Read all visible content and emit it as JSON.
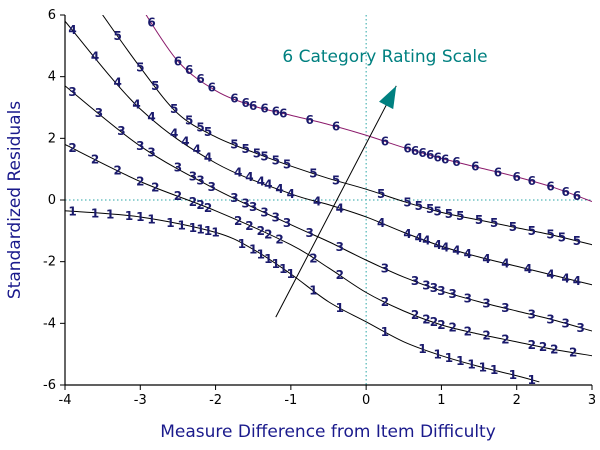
{
  "chart_data": {
    "type": "line",
    "title": "",
    "annotation": "6 Category Rating Scale",
    "xlabel": "Measure Difference from Item Difficulty",
    "ylabel": "Standardized Residuals",
    "xlim": [
      -4,
      3
    ],
    "ylim": [
      -6,
      6
    ],
    "x_ticks": [
      -4,
      -3,
      -2,
      -1,
      0,
      1,
      2,
      3
    ],
    "x_tick_labels": [
      "-4",
      "-3",
      "-2",
      "-1",
      "0",
      "1",
      "2",
      "3"
    ],
    "y_ticks": [
      -6,
      -4,
      -2,
      0,
      2,
      4,
      6
    ],
    "y_tick_labels": [
      "-6",
      "-4",
      "-2",
      "0",
      "2",
      "4",
      "6"
    ],
    "reference_lines": {
      "x": 0,
      "y": 0
    },
    "arrow": {
      "from": [
        -1.2,
        -3.8
      ],
      "to": [
        0.4,
        3.7
      ]
    },
    "series": [
      {
        "name": "1",
        "color": "#000000",
        "points": [
          [
            -4.0,
            -0.35
          ],
          [
            -3.0,
            -0.55
          ],
          [
            -2.0,
            -1.05
          ],
          [
            -1.5,
            -1.6
          ],
          [
            -1.0,
            -2.4
          ],
          [
            -0.5,
            -3.3
          ],
          [
            0.0,
            -3.95
          ],
          [
            0.5,
            -4.6
          ],
          [
            1.0,
            -5.05
          ],
          [
            1.5,
            -5.4
          ],
          [
            2.0,
            -5.7
          ],
          [
            2.3,
            -5.9
          ]
        ],
        "markers": [
          -3.9,
          -3.6,
          -3.4,
          -3.15,
          -3.0,
          -2.85,
          -2.6,
          -2.45,
          -2.3,
          -2.2,
          -2.1,
          -2.0,
          -1.65,
          -1.5,
          -1.4,
          -1.3,
          -1.2,
          -1.1,
          -1.0,
          -0.7,
          -0.35,
          0.25,
          0.75,
          0.95,
          1.1,
          1.25,
          1.4,
          1.55,
          1.7,
          1.95,
          2.2
        ]
      },
      {
        "name": "2",
        "color": "#000000",
        "points": [
          [
            -4.0,
            1.8
          ],
          [
            -3.0,
            0.6
          ],
          [
            -2.0,
            -0.35
          ],
          [
            -1.0,
            -1.45
          ],
          [
            -0.5,
            -2.2
          ],
          [
            0.0,
            -3.0
          ],
          [
            0.5,
            -3.6
          ],
          [
            1.0,
            -4.05
          ],
          [
            1.5,
            -4.35
          ],
          [
            2.0,
            -4.6
          ],
          [
            2.5,
            -4.85
          ],
          [
            3.0,
            -5.05
          ]
        ],
        "markers": [
          -3.9,
          -3.6,
          -3.3,
          -3.0,
          -2.8,
          -2.5,
          -2.3,
          -2.2,
          -2.1,
          -1.7,
          -1.55,
          -1.4,
          -1.3,
          -1.15,
          -0.7,
          -0.35,
          0.25,
          0.65,
          0.8,
          0.9,
          1.0,
          1.15,
          1.35,
          1.6,
          1.85,
          2.2,
          2.35,
          2.5,
          2.75
        ]
      },
      {
        "name": "3",
        "color": "#000000",
        "points": [
          [
            -4.0,
            3.7
          ],
          [
            -3.0,
            1.75
          ],
          [
            -2.0,
            0.35
          ],
          [
            -1.0,
            -0.8
          ],
          [
            -0.5,
            -1.35
          ],
          [
            0.0,
            -1.95
          ],
          [
            0.5,
            -2.5
          ],
          [
            1.0,
            -2.95
          ],
          [
            1.5,
            -3.3
          ],
          [
            2.0,
            -3.6
          ],
          [
            2.5,
            -3.9
          ],
          [
            3.0,
            -4.25
          ]
        ],
        "markers": [
          -3.9,
          -3.55,
          -3.25,
          -3.0,
          -2.85,
          -2.5,
          -2.3,
          -2.2,
          -2.05,
          -1.75,
          -1.6,
          -1.5,
          -1.35,
          -1.2,
          -1.05,
          -0.75,
          -0.35,
          0.25,
          0.65,
          0.8,
          0.9,
          1.0,
          1.15,
          1.35,
          1.6,
          1.85,
          2.2,
          2.45,
          2.65,
          2.85
        ]
      },
      {
        "name": "4",
        "color": "#000000",
        "points": [
          [
            -4.0,
            5.8
          ],
          [
            -3.0,
            2.95
          ],
          [
            -2.0,
            1.2
          ],
          [
            -1.0,
            0.2
          ],
          [
            -0.5,
            -0.15
          ],
          [
            0.0,
            -0.55
          ],
          [
            0.5,
            -1.05
          ],
          [
            1.0,
            -1.5
          ],
          [
            1.5,
            -1.85
          ],
          [
            2.0,
            -2.15
          ],
          [
            2.5,
            -2.45
          ],
          [
            3.0,
            -2.75
          ]
        ],
        "markers": [
          -3.9,
          -3.6,
          -3.3,
          -3.05,
          -2.85,
          -2.55,
          -2.4,
          -2.25,
          -2.1,
          -1.7,
          -1.55,
          -1.4,
          -1.3,
          -1.15,
          -1.0,
          -0.65,
          -0.35,
          0.2,
          0.55,
          0.7,
          0.8,
          0.95,
          1.05,
          1.2,
          1.35,
          1.6,
          1.85,
          2.15,
          2.45,
          2.65,
          2.8
        ]
      },
      {
        "name": "5",
        "color": "#000000",
        "points": [
          [
            -3.5,
            6.0
          ],
          [
            -3.0,
            4.3
          ],
          [
            -2.5,
            2.8
          ],
          [
            -2.0,
            2.05
          ],
          [
            -1.5,
            1.55
          ],
          [
            -1.0,
            1.1
          ],
          [
            -0.5,
            0.7
          ],
          [
            0.0,
            0.35
          ],
          [
            0.5,
            -0.05
          ],
          [
            1.0,
            -0.4
          ],
          [
            1.5,
            -0.65
          ],
          [
            2.0,
            -0.9
          ],
          [
            2.5,
            -1.15
          ],
          [
            3.0,
            -1.45
          ]
        ],
        "markers": [
          -3.3,
          -3.0,
          -2.8,
          -2.55,
          -2.35,
          -2.2,
          -2.1,
          -1.75,
          -1.6,
          -1.45,
          -1.35,
          -1.2,
          -1.05,
          -0.7,
          -0.4,
          0.2,
          0.55,
          0.7,
          0.85,
          0.95,
          1.1,
          1.25,
          1.5,
          1.7,
          1.95,
          2.2,
          2.45,
          2.6,
          2.8
        ]
      },
      {
        "name": "6",
        "color": "#8b1a6b",
        "points": [
          [
            -3.0,
            6.3
          ],
          [
            -2.5,
            4.5
          ],
          [
            -2.0,
            3.55
          ],
          [
            -1.5,
            3.05
          ],
          [
            -1.0,
            2.75
          ],
          [
            -0.5,
            2.45
          ],
          [
            0.0,
            2.1
          ],
          [
            0.5,
            1.7
          ],
          [
            1.0,
            1.35
          ],
          [
            1.5,
            1.05
          ],
          [
            2.0,
            0.75
          ],
          [
            2.5,
            0.4
          ],
          [
            3.0,
            -0.05
          ]
        ],
        "markers": [
          -2.85,
          -2.5,
          -2.35,
          -2.2,
          -2.05,
          -1.75,
          -1.6,
          -1.5,
          -1.35,
          -1.2,
          -1.1,
          -0.75,
          -0.4,
          0.25,
          0.55,
          0.65,
          0.75,
          0.85,
          0.95,
          1.05,
          1.2,
          1.45,
          1.75,
          2.0,
          2.2,
          2.45,
          2.65,
          2.8
        ]
      }
    ]
  }
}
